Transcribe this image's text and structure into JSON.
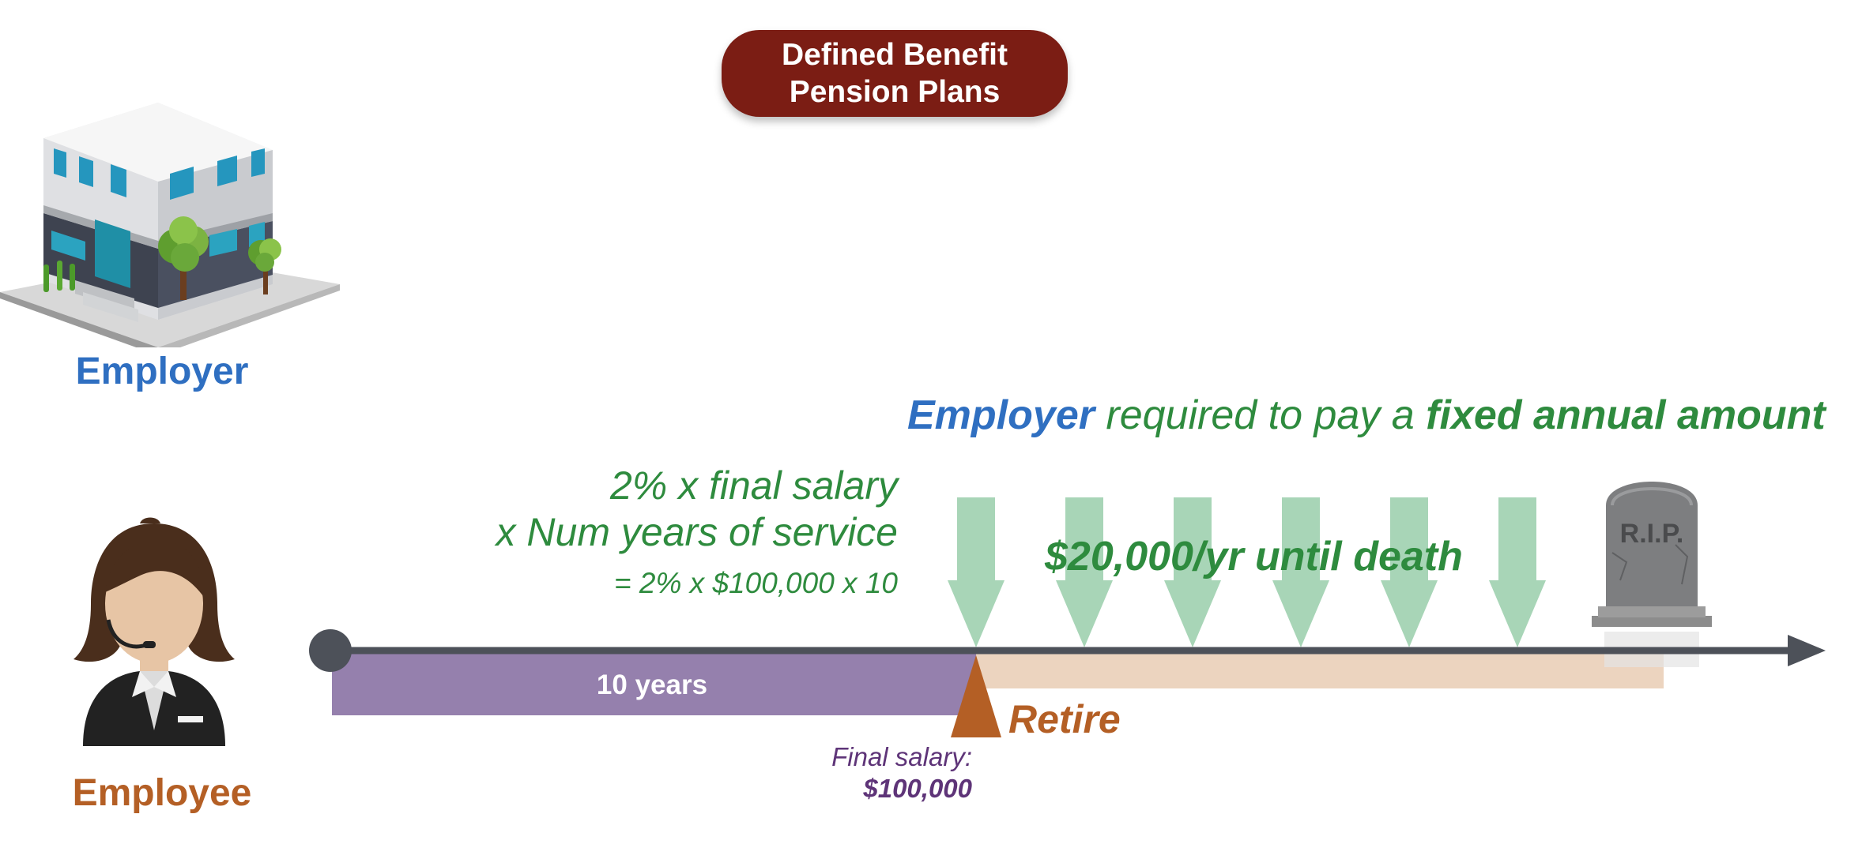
{
  "title": {
    "line1": "Defined Benefit",
    "line2": "Pension Plans"
  },
  "actors": {
    "employer": "Employer",
    "employee": "Employee"
  },
  "headline": {
    "employer": "Employer",
    "middle": " required to pay a ",
    "emphasis": "fixed annual amount"
  },
  "formula": {
    "line1": "2% x final salary",
    "line2": "x Num years of service",
    "line3": "= 2% x $100,000 x 10"
  },
  "benefit": "$20,000/yr until death",
  "timeline": {
    "service_label": "10 years",
    "retire_label": "Retire",
    "final_salary_label": "Final salary:",
    "final_salary_value": "$100,000",
    "payment_count": 6
  },
  "tombstone_text": "R.I.P.",
  "colors": {
    "title_bg": "#7b1d14",
    "employer_blue": "#2f6fc1",
    "benefit_green": "#2e8b3e",
    "arrow_green": "#a8d5b7",
    "retire_orange": "#b45f25",
    "service_purple": "#9580ad",
    "retirement_beige": "#ecd4bf",
    "timeline_gray": "#4d5159"
  },
  "icons": [
    "office-building-icon",
    "employee-avatar-icon",
    "tombstone-icon",
    "down-arrow-icon",
    "retire-triangle-icon"
  ]
}
